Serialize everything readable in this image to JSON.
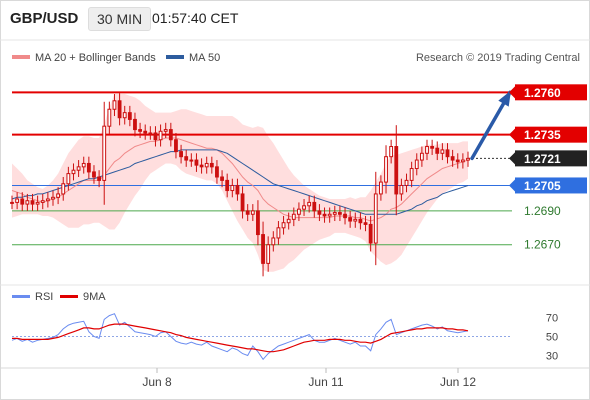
{
  "header": {
    "symbol": "GBP/USD",
    "timeframe": "30 MIN",
    "time": "01:57:40 CET"
  },
  "legend": {
    "ma20_bb": "MA 20 + Bollinger Bands",
    "ma50": "MA 50",
    "source": "Research © 2019 Trading Central",
    "rsi": "RSI",
    "rsi_ma": "9MA"
  },
  "colors": {
    "candle": "#cc1010",
    "bollinger_fill": "#ffd8d8",
    "ma20": "#f08a8a",
    "ma50": "#2d5c9e",
    "resistance": "#e30000",
    "support": "#4ca84c",
    "pivot": "#2f6fe0",
    "last_price": "#222222",
    "arrow": "#2a5aa8",
    "rsi": "#6a8cf0",
    "rsi_ma": "#e00000"
  },
  "chart_data": [
    {
      "type": "candlestick",
      "series": [
        "Price",
        "MA 20 + Bollinger Bands",
        "MA 50"
      ],
      "ylim": [
        1.2648,
        1.2772
      ],
      "x_tick_labels": [
        "Jun 8",
        "Jun 11",
        "Jun 12"
      ],
      "price_levels": [
        {
          "value": 1.276,
          "label": "1.2760",
          "kind": "resistance"
        },
        {
          "value": 1.2735,
          "label": "1.2735",
          "kind": "resistance"
        },
        {
          "value": 1.2721,
          "label": "1.2721",
          "kind": "last"
        },
        {
          "value": 1.2705,
          "label": "1.2705",
          "kind": "pivot"
        },
        {
          "value": 1.269,
          "label": "1.2690",
          "kind": "support"
        },
        {
          "value": 1.267,
          "label": "1.2670",
          "kind": "support"
        }
      ],
      "forecast_target": 1.276,
      "closes": [
        1.2695,
        1.2697,
        1.2694,
        1.2696,
        1.2694,
        1.2695,
        1.2696,
        1.2697,
        1.2698,
        1.27,
        1.2706,
        1.2712,
        1.2714,
        1.2716,
        1.2718,
        1.2713,
        1.271,
        1.2708,
        1.274,
        1.275,
        1.2755,
        1.2745,
        1.2748,
        1.2744,
        1.2738,
        1.2737,
        1.2736,
        1.2736,
        1.2732,
        1.2737,
        1.2738,
        1.2732,
        1.2725,
        1.2722,
        1.272,
        1.272,
        1.2717,
        1.2716,
        1.2718,
        1.2716,
        1.271,
        1.2708,
        1.2702,
        1.2705,
        1.27,
        1.269,
        1.2688,
        1.269,
        1.2676,
        1.2659,
        1.267,
        1.2674,
        1.268,
        1.2683,
        1.2685,
        1.2688,
        1.2691,
        1.2693,
        1.2695,
        1.269,
        1.2688,
        1.2687,
        1.2688,
        1.2689,
        1.2688,
        1.2686,
        1.2684,
        1.2685,
        1.2683,
        1.2682,
        1.2671,
        1.27,
        1.2707,
        1.2722,
        1.2728,
        1.27,
        1.2705,
        1.2708,
        1.2715,
        1.272,
        1.2724,
        1.2728,
        1.2727,
        1.2724,
        1.2726,
        1.2722,
        1.272,
        1.2719,
        1.272,
        1.2721
      ],
      "ma20": [
        1.2702,
        1.2701,
        1.27,
        1.2698,
        1.2697,
        1.2696,
        1.2695,
        1.2696,
        1.2697,
        1.2698,
        1.27,
        1.2702,
        1.2704,
        1.2706,
        1.2708,
        1.2708,
        1.2708,
        1.2708,
        1.2711,
        1.2715,
        1.2719,
        1.2721,
        1.2724,
        1.2726,
        1.2728,
        1.2729,
        1.273,
        1.2731,
        1.2731,
        1.2732,
        1.2733,
        1.2733,
        1.2733,
        1.2732,
        1.2731,
        1.273,
        1.2729,
        1.2728,
        1.2727,
        1.2727,
        1.2726,
        1.2724,
        1.2721,
        1.2718,
        1.2714,
        1.271,
        1.2707,
        1.2705,
        1.2702,
        1.2697,
        1.2694,
        1.2692,
        1.269,
        1.2688,
        1.2687,
        1.2686,
        1.2686,
        1.2686,
        1.2686,
        1.2686,
        1.2686,
        1.2686,
        1.2686,
        1.2687,
        1.2687,
        1.2687,
        1.2687,
        1.2686,
        1.2686,
        1.2685,
        1.2684,
        1.2685,
        1.2686,
        1.2688,
        1.2691,
        1.2692,
        1.2694,
        1.2697,
        1.27,
        1.2703,
        1.2706,
        1.2709,
        1.2711,
        1.2713,
        1.2715,
        1.2716,
        1.2717,
        1.2718,
        1.2719,
        1.272
      ],
      "ma50": [
        1.2697,
        1.2698,
        1.2698,
        1.2699,
        1.2699,
        1.27,
        1.27,
        1.2701,
        1.2702,
        1.2703,
        1.2704,
        1.2705,
        1.2706,
        1.2707,
        1.2708,
        1.2709,
        1.2709,
        1.271,
        1.2711,
        1.2712,
        1.2713,
        1.2714,
        1.2715,
        1.2716,
        1.2718,
        1.2719,
        1.272,
        1.2721,
        1.2722,
        1.2723,
        1.2724,
        1.2725,
        1.2725,
        1.2726,
        1.2726,
        1.2726,
        1.2726,
        1.2726,
        1.2726,
        1.2726,
        1.2726,
        1.2725,
        1.2724,
        1.2722,
        1.272,
        1.2718,
        1.2716,
        1.2714,
        1.2712,
        1.271,
        1.2708,
        1.2706,
        1.2705,
        1.2704,
        1.2703,
        1.2702,
        1.2701,
        1.27,
        1.2699,
        1.2698,
        1.2697,
        1.2696,
        1.2695,
        1.2694,
        1.2693,
        1.2692,
        1.2691,
        1.269,
        1.2689,
        1.2688,
        1.2688,
        1.2688,
        1.2688,
        1.2688,
        1.2688,
        1.2688,
        1.2689,
        1.269,
        1.2691,
        1.2693,
        1.2694,
        1.2696,
        1.2697,
        1.2698,
        1.27,
        1.2701,
        1.2702,
        1.2703,
        1.2704,
        1.2705
      ],
      "bollinger_width": [
        0.0016,
        0.0014,
        0.0012,
        0.001,
        0.0009,
        0.0008,
        0.0008,
        0.0009,
        0.0011,
        0.0014,
        0.0018,
        0.0022,
        0.0024,
        0.0026,
        0.0026,
        0.0026,
        0.0025,
        0.0025,
        0.003,
        0.0036,
        0.004,
        0.0038,
        0.0035,
        0.0032,
        0.0029,
        0.0026,
        0.0022,
        0.0019,
        0.0017,
        0.0016,
        0.0015,
        0.0015,
        0.0016,
        0.0018,
        0.0019,
        0.0019,
        0.0019,
        0.0019,
        0.0019,
        0.0019,
        0.002,
        0.0022,
        0.0025,
        0.0028,
        0.003,
        0.0031,
        0.0033,
        0.0034,
        0.0038,
        0.0042,
        0.004,
        0.0038,
        0.0035,
        0.0032,
        0.0028,
        0.0025,
        0.0022,
        0.0019,
        0.0017,
        0.0015,
        0.0013,
        0.0012,
        0.0011,
        0.001,
        0.001,
        0.001,
        0.0011,
        0.0011,
        0.0012,
        0.0013,
        0.0018,
        0.0022,
        0.0026,
        0.003,
        0.0032,
        0.0031,
        0.003,
        0.0028,
        0.0026,
        0.0024,
        0.0022,
        0.002,
        0.0018,
        0.0016,
        0.0015,
        0.0014,
        0.0013,
        0.0012,
        0.0012,
        0.0011
      ]
    },
    {
      "type": "line",
      "series": [
        "RSI",
        "9MA"
      ],
      "ylim": [
        20,
        80
      ],
      "y_ticks": [
        70,
        50,
        30
      ],
      "rsi": [
        46,
        48,
        45,
        47,
        44,
        46,
        47,
        48,
        49,
        52,
        58,
        62,
        64,
        65,
        66,
        55,
        50,
        48,
        68,
        72,
        74,
        62,
        65,
        60,
        55,
        54,
        53,
        52,
        50,
        54,
        55,
        50,
        45,
        43,
        42,
        44,
        42,
        41,
        44,
        40,
        38,
        36,
        34,
        38,
        36,
        32,
        30,
        40,
        34,
        26,
        32,
        36,
        40,
        42,
        44,
        46,
        48,
        50,
        52,
        46,
        44,
        44,
        46,
        48,
        46,
        44,
        42,
        44,
        40,
        40,
        35,
        52,
        58,
        65,
        68,
        52,
        54,
        56,
        58,
        60,
        62,
        63,
        61,
        58,
        60,
        56,
        55,
        54,
        55,
        56
      ],
      "rsi_ma": [
        48,
        48,
        47,
        47,
        47,
        47,
        47,
        47,
        48,
        49,
        51,
        53,
        55,
        57,
        59,
        59,
        58,
        58,
        60,
        62,
        63,
        63,
        63,
        62,
        61,
        60,
        59,
        58,
        57,
        56,
        55,
        54,
        52,
        51,
        49,
        48,
        47,
        46,
        45,
        44,
        43,
        42,
        41,
        40,
        39,
        38,
        37,
        37,
        36,
        35,
        34,
        34,
        35,
        36,
        38,
        40,
        42,
        44,
        45,
        46,
        46,
        46,
        47,
        47,
        47,
        46,
        46,
        45,
        44,
        44,
        43,
        45,
        47,
        50,
        53,
        54,
        55,
        56,
        57,
        58,
        58,
        59,
        59,
        59,
        59,
        58,
        58,
        57,
        57,
        56
      ]
    }
  ]
}
